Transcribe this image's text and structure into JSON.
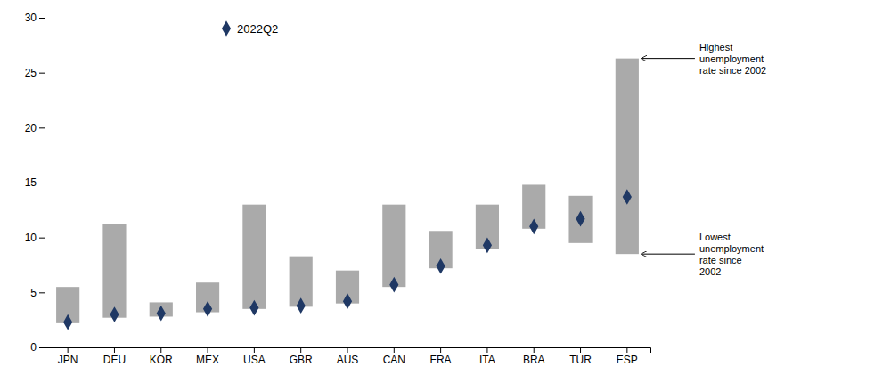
{
  "chart_data": {
    "type": "bar",
    "categories": [
      "JPN",
      "DEU",
      "KOR",
      "MEX",
      "USA",
      "GBR",
      "AUS",
      "CAN",
      "FRA",
      "ITA",
      "BRA",
      "TUR",
      "ESP"
    ],
    "series": [
      {
        "type": "bar",
        "color": "#aaaaaa",
        "low": [
          2.2,
          2.7,
          2.8,
          3.2,
          3.5,
          3.7,
          4.0,
          5.5,
          7.2,
          9.0,
          10.8,
          9.5,
          8.5
        ],
        "high": [
          5.5,
          11.2,
          4.1,
          5.9,
          13.0,
          8.3,
          7.0,
          13.0,
          10.6,
          13.0,
          14.8,
          13.8,
          26.3
        ]
      },
      {
        "name": "2022Q2",
        "type": "scatter",
        "marker": "diamond",
        "color": "#1f3864",
        "values": [
          2.3,
          3.0,
          3.1,
          3.5,
          3.6,
          3.8,
          4.2,
          5.7,
          7.4,
          9.3,
          11.0,
          11.7,
          13.7
        ]
      }
    ],
    "ylim": [
      0,
      30
    ],
    "yticks": [
      0,
      5,
      10,
      15,
      20,
      25,
      30
    ],
    "grid": false,
    "legend": "top",
    "annotations": [
      {
        "text": "Highest\nunemployment\nrate since 2002",
        "x": "ESP",
        "y": 26.3
      },
      {
        "text": "Lowest\nunemployment\nrate since\n2002",
        "x": "ESP",
        "y": 8.5
      }
    ]
  }
}
